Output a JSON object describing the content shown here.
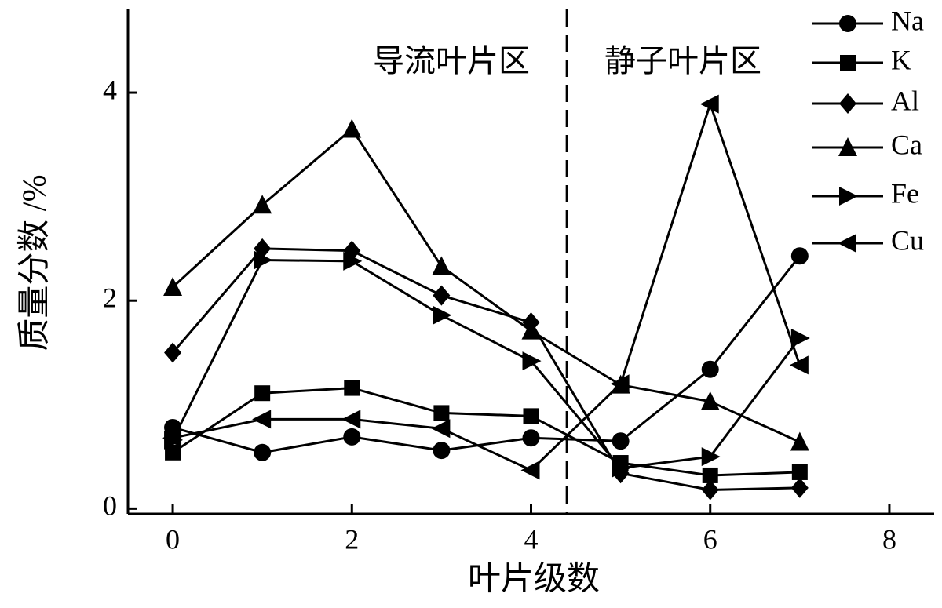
{
  "chart_data": {
    "type": "line",
    "xlabel": "叶片级数",
    "ylabel": "质量分数 /%",
    "annotations": [
      "导流叶片区",
      "静子叶片区"
    ],
    "divider_x": 4.4,
    "x": [
      0,
      1,
      2,
      3,
      4,
      5,
      6,
      7
    ],
    "series": [
      {
        "name": "Na",
        "color": "#000000",
        "marker": "circle",
        "values": [
          0.78,
          0.54,
          0.69,
          0.56,
          0.68,
          0.65,
          1.34,
          2.43
        ]
      },
      {
        "name": "K",
        "color": "#000000",
        "marker": "square",
        "values": [
          0.54,
          1.11,
          1.16,
          0.92,
          0.89,
          0.44,
          0.32,
          0.35
        ]
      },
      {
        "name": "Al",
        "color": "#000000",
        "marker": "diamond",
        "values": [
          1.5,
          2.5,
          2.48,
          2.05,
          1.79,
          0.34,
          0.18,
          0.2
        ]
      },
      {
        "name": "Ca",
        "color": "#000000",
        "marker": "triangle-up",
        "values": [
          2.13,
          2.92,
          3.65,
          2.33,
          1.71,
          1.19,
          1.03,
          0.64
        ]
      },
      {
        "name": "Fe",
        "color": "#000000",
        "marker": "triangle-right",
        "values": [
          0.66,
          2.39,
          2.38,
          1.86,
          1.42,
          0.39,
          0.5,
          1.64
        ]
      },
      {
        "name": "Cu",
        "color": "#000000",
        "marker": "triangle-left",
        "values": [
          0.68,
          0.86,
          0.86,
          0.77,
          0.37,
          1.2,
          3.89,
          1.38
        ]
      }
    ],
    "xlim": [
      -0.5,
      8.5
    ],
    "xticks": [
      0,
      2,
      4,
      6,
      8
    ],
    "ylim": [
      -0.05,
      4.8
    ],
    "yticks": [
      0,
      2,
      4
    ],
    "legend": "upper right",
    "grid": false
  }
}
